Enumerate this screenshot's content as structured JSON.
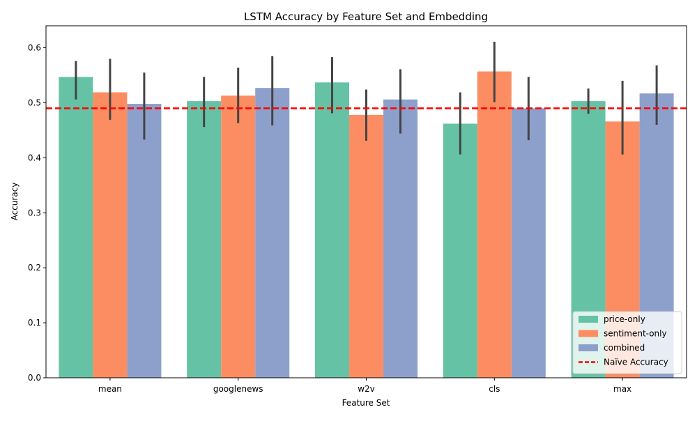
{
  "chart_data": {
    "type": "bar",
    "title": "LSTM Accuracy by Feature Set and Embedding",
    "xlabel": "Feature Set",
    "ylabel": "Accuracy",
    "ylim": [
      0,
      0.64
    ],
    "yticks": [
      "0.0",
      "0.1",
      "0.2",
      "0.3",
      "0.4",
      "0.5",
      "0.6"
    ],
    "categories": [
      "mean",
      "googlenews",
      "w2v",
      "cls",
      "max"
    ],
    "series": [
      {
        "name": "price-only",
        "color": "#66c2a5",
        "values": [
          0.547,
          0.503,
          0.537,
          0.462,
          0.503
        ],
        "ci_low": [
          0.506,
          0.456,
          0.481,
          0.406,
          0.48
        ],
        "ci_high": [
          0.576,
          0.547,
          0.583,
          0.519,
          0.526
        ]
      },
      {
        "name": "sentiment-only",
        "color": "#fc8d62",
        "values": [
          0.519,
          0.513,
          0.478,
          0.557,
          0.466
        ],
        "ci_low": [
          0.469,
          0.463,
          0.431,
          0.501,
          0.406
        ],
        "ci_high": [
          0.58,
          0.564,
          0.524,
          0.611,
          0.54
        ]
      },
      {
        "name": "combined",
        "color": "#8da0cb",
        "values": [
          0.498,
          0.527,
          0.506,
          0.49,
          0.517
        ],
        "ci_low": [
          0.433,
          0.459,
          0.444,
          0.432,
          0.46
        ],
        "ci_high": [
          0.555,
          0.585,
          0.561,
          0.547,
          0.568
        ]
      }
    ],
    "reference_line": {
      "name": "Naïve Accuracy",
      "value": 0.49,
      "color": "#ff0000",
      "style": "dashed"
    },
    "legend_position": "bottom-right",
    "grid": false
  }
}
